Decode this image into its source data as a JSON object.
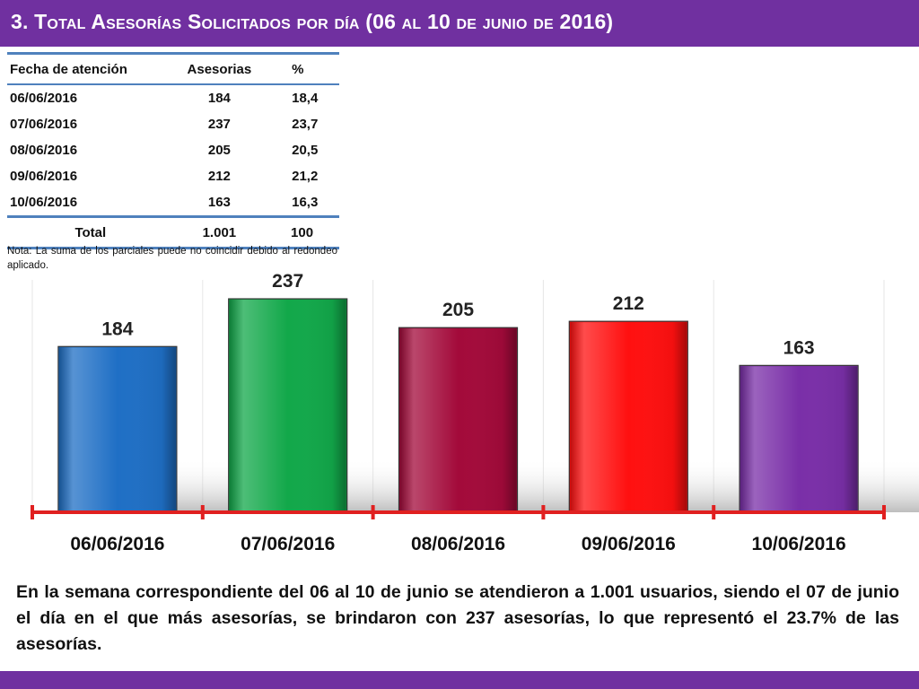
{
  "header": {
    "title": "3.  Total Asesorías Solicitados por día  (06 al 10 de junio de 2016)"
  },
  "table": {
    "headers": [
      "Fecha de atención",
      "Asesorias",
      "%"
    ],
    "rows": [
      [
        "06/06/2016",
        "184",
        "18,4"
      ],
      [
        "07/06/2016",
        "237",
        "23,7"
      ],
      [
        "08/06/2016",
        "205",
        "20,5"
      ],
      [
        "09/06/2016",
        "212",
        "21,2"
      ],
      [
        "10/06/2016",
        "163",
        "16,3"
      ]
    ],
    "total": [
      "Total",
      "1.001",
      "100"
    ]
  },
  "note": "Nota: La suma de los parciales puede no coincidir debido al redondeo aplicado.",
  "chart_data": {
    "type": "bar",
    "categories": [
      "06/06/2016",
      "07/06/2016",
      "08/06/2016",
      "09/06/2016",
      "10/06/2016"
    ],
    "values": [
      184,
      237,
      205,
      212,
      163
    ],
    "data_labels": [
      "184",
      "237",
      "205",
      "212",
      "163"
    ],
    "colors": [
      "#1f6fc5",
      "#12a84a",
      "#a30a3a",
      "#ff1010",
      "#7a2fa8"
    ],
    "axis_color": "#e02020",
    "ylim": [
      0,
      250
    ],
    "grid": false,
    "legend": "none",
    "title": "",
    "xlabel": "",
    "ylabel": ""
  },
  "summary": "En la semana correspondiente del 06 al 10 de junio se  atendieron a 1.001 usuarios, siendo el 07 de junio el día en el que más asesorías, se brindaron con 237 asesorías, lo que representó el 23.7% de las asesorías."
}
